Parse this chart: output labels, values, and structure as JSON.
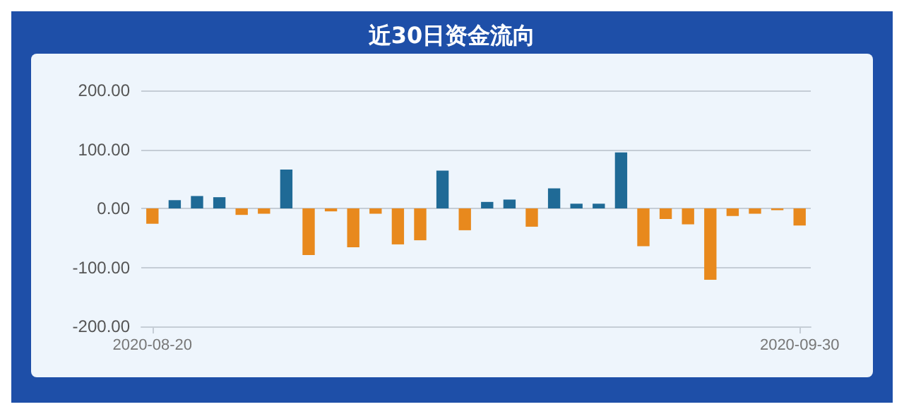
{
  "chart_data": {
    "type": "bar",
    "title": "近30日资金流向",
    "categories": [
      "2020-08-20",
      null,
      null,
      null,
      null,
      null,
      null,
      null,
      null,
      null,
      null,
      null,
      null,
      null,
      null,
      null,
      null,
      null,
      null,
      null,
      null,
      null,
      null,
      null,
      null,
      null,
      null,
      null,
      null,
      "2020-09-30"
    ],
    "values": [
      -26,
      14,
      21,
      19,
      -11,
      -9,
      66,
      -79,
      -5,
      -66,
      -9,
      -61,
      -54,
      64,
      -37,
      11,
      15,
      -31,
      34,
      8,
      8,
      95,
      -64,
      -18,
      -27,
      -121,
      -13,
      -9,
      -3,
      -29
    ],
    "colors": [
      "#e8891d",
      "#1f6a96",
      "#1f6a96",
      "#1f6a96",
      "#e8891d",
      "#e8891d",
      "#1f6a96",
      "#e8891d",
      "#e8891d",
      "#e8891d",
      "#e8891d",
      "#e8891d",
      "#e8891d",
      "#1f6a96",
      "#e8891d",
      "#1f6a96",
      "#1f6a96",
      "#e8891d",
      "#1f6a96",
      "#1f6a96",
      "#1f6a96",
      "#1f6a96",
      "#e8891d",
      "#e8891d",
      "#e8891d",
      "#e8891d",
      "#e8891d",
      "#e8891d",
      "#e8891d",
      "#e8891d"
    ],
    "ylim": [
      -200,
      200
    ],
    "yticks": [
      {
        "value": -200,
        "label": "-200.00"
      },
      {
        "value": -100,
        "label": "-100.00"
      },
      {
        "value": 0,
        "label": "0.00"
      },
      {
        "value": 100,
        "label": "100.00"
      },
      {
        "value": 200,
        "label": "200.00"
      }
    ],
    "grid": "y"
  }
}
